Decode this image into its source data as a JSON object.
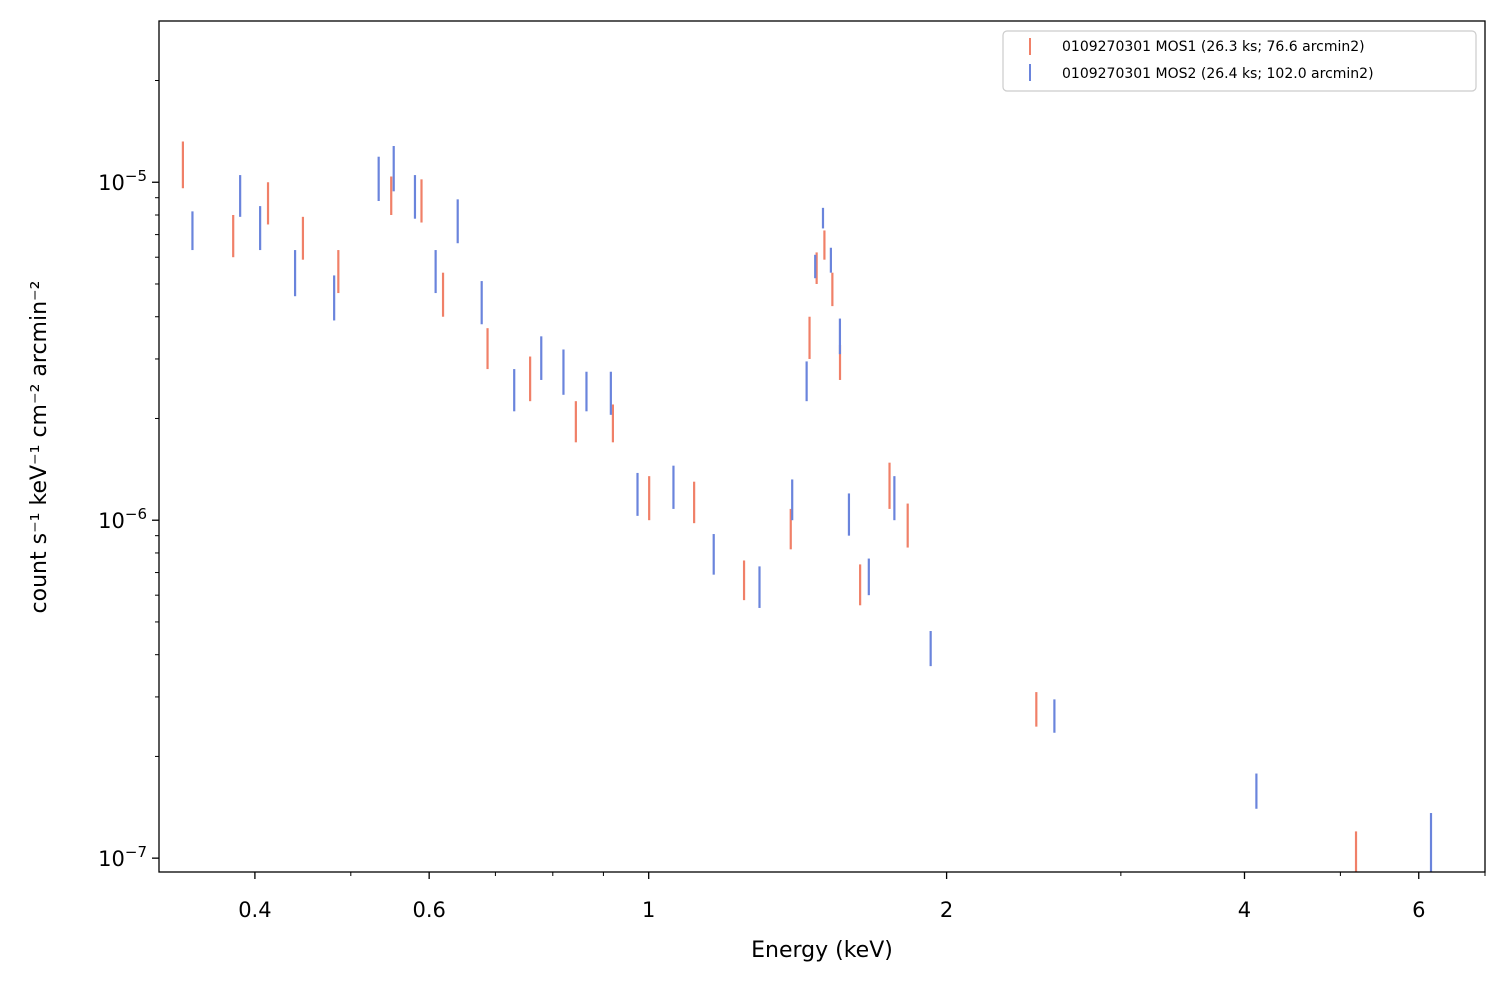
{
  "chart_data": {
    "type": "scatter",
    "title": "",
    "xlabel": "Energy (keV)",
    "ylabel": "count s⁻¹ keV⁻¹ cm⁻² arcmin⁻²",
    "xscale": "log",
    "yscale": "log",
    "xlim": [
      0.32,
      7.0
    ],
    "ylim": [
      9.1e-08,
      3e-05
    ],
    "xticks": [
      {
        "value": 0.4,
        "label": "0.4"
      },
      {
        "value": 0.6,
        "label": "0.6"
      },
      {
        "value": 1,
        "label": "1"
      },
      {
        "value": 2,
        "label": "2"
      },
      {
        "value": 4,
        "label": "4"
      },
      {
        "value": 6,
        "label": "6"
      }
    ],
    "yticks": [
      {
        "value": 1e-07,
        "base": "10",
        "exp": "−7"
      },
      {
        "value": 1e-06,
        "base": "10",
        "exp": "−6"
      },
      {
        "value": 1e-05,
        "base": "10",
        "exp": "−5"
      }
    ],
    "grid": false,
    "legend_position": "top-right",
    "series": [
      {
        "name": "0109270301 MOS1 (26.3 ks; 76.6 arcmin2)",
        "color": "#f08068",
        "points": [
          {
            "x": 0.3383,
            "y_low": 9.6e-06,
            "y_high": 1.32e-05
          },
          {
            "x": 0.3803,
            "y_low": 6e-06,
            "y_high": 8e-06
          },
          {
            "x": 0.4124,
            "y_low": 7.5e-06,
            "y_high": 1e-05
          },
          {
            "x": 0.4473,
            "y_low": 5.9e-06,
            "y_high": 7.9e-06
          },
          {
            "x": 0.4857,
            "y_low": 4.7e-06,
            "y_high": 6.3e-06
          },
          {
            "x": 0.5493,
            "y_low": 8e-06,
            "y_high": 1.04e-05
          },
          {
            "x": 0.5894,
            "y_low": 7.6e-06,
            "y_high": 1.02e-05
          },
          {
            "x": 0.6197,
            "y_low": 4e-06,
            "y_high": 5.4e-06
          },
          {
            "x": 0.6873,
            "y_low": 2.8e-06,
            "y_high": 3.7e-06
          },
          {
            "x": 0.7589,
            "y_low": 2.25e-06,
            "y_high": 3.05e-06
          },
          {
            "x": 0.8441,
            "y_low": 1.7e-06,
            "y_high": 2.25e-06
          },
          {
            "x": 0.9201,
            "y_low": 1.7e-06,
            "y_high": 2.2e-06
          },
          {
            "x": 1.0011,
            "y_low": 1e-06,
            "y_high": 1.35e-06
          },
          {
            "x": 1.1115,
            "y_low": 9.8e-07,
            "y_high": 1.3e-06
          },
          {
            "x": 1.2484,
            "y_low": 5.8e-07,
            "y_high": 7.6e-07
          },
          {
            "x": 1.3917,
            "y_low": 8.2e-07,
            "y_high": 1.08e-06
          },
          {
            "x": 1.4539,
            "y_low": 3e-06,
            "y_high": 4e-06
          },
          {
            "x": 1.4781,
            "y_low": 5e-06,
            "y_high": 6.2e-06
          },
          {
            "x": 1.5051,
            "y_low": 5.9e-06,
            "y_high": 7.2e-06
          },
          {
            "x": 1.5332,
            "y_low": 4.3e-06,
            "y_high": 5.4e-06
          },
          {
            "x": 1.5607,
            "y_low": 2.6e-06,
            "y_high": 3.3e-06
          },
          {
            "x": 1.6355,
            "y_low": 5.6e-07,
            "y_high": 7.4e-07
          },
          {
            "x": 1.7513,
            "y_low": 1.08e-06,
            "y_high": 1.48e-06
          },
          {
            "x": 1.8269,
            "y_low": 8.3e-07,
            "y_high": 1.12e-06
          },
          {
            "x": 2.4643,
            "y_low": 2.45e-07,
            "y_high": 3.1e-07
          },
          {
            "x": 5.1852,
            "y_low": 8.5e-08,
            "y_high": 1.2e-07
          }
        ]
      },
      {
        "name": "0109270301 MOS2 (26.4 ks; 102.0 arcmin2)",
        "color": "#6a84dc",
        "points": [
          {
            "x": 0.3459,
            "y_low": 6.3e-06,
            "y_high": 8.2e-06
          },
          {
            "x": 0.3865,
            "y_low": 7.9e-06,
            "y_high": 1.05e-05
          },
          {
            "x": 0.4049,
            "y_low": 6.3e-06,
            "y_high": 8.5e-06
          },
          {
            "x": 0.4392,
            "y_low": 4.6e-06,
            "y_high": 6.3e-06
          },
          {
            "x": 0.481,
            "y_low": 3.9e-06,
            "y_high": 5.3e-06
          },
          {
            "x": 0.5335,
            "y_low": 8.8e-06,
            "y_high": 1.19e-05
          },
          {
            "x": 0.5525,
            "y_low": 9.4e-06,
            "y_high": 1.28e-05
          },
          {
            "x": 0.5805,
            "y_low": 7.8e-06,
            "y_high": 1.05e-05
          },
          {
            "x": 0.6091,
            "y_low": 4.7e-06,
            "y_high": 6.3e-06
          },
          {
            "x": 0.6412,
            "y_low": 6.6e-06,
            "y_high": 8.9e-06
          },
          {
            "x": 0.678,
            "y_low": 3.8e-06,
            "y_high": 5.1e-06
          },
          {
            "x": 0.7313,
            "y_low": 2.1e-06,
            "y_high": 2.8e-06
          },
          {
            "x": 0.7788,
            "y_low": 2.6e-06,
            "y_high": 3.5e-06
          },
          {
            "x": 0.8201,
            "y_low": 2.35e-06,
            "y_high": 3.2e-06
          },
          {
            "x": 0.8652,
            "y_low": 2.1e-06,
            "y_high": 2.75e-06
          },
          {
            "x": 0.9157,
            "y_low": 2.05e-06,
            "y_high": 2.75e-06
          },
          {
            "x": 0.9743,
            "y_low": 1.03e-06,
            "y_high": 1.38e-06
          },
          {
            "x": 1.0593,
            "y_low": 1.08e-06,
            "y_high": 1.45e-06
          },
          {
            "x": 1.1633,
            "y_low": 6.9e-07,
            "y_high": 9.1e-07
          },
          {
            "x": 1.2941,
            "y_low": 5.5e-07,
            "y_high": 7.3e-07
          },
          {
            "x": 1.3964,
            "y_low": 1e-06,
            "y_high": 1.32e-06
          },
          {
            "x": 1.4441,
            "y_low": 2.25e-06,
            "y_high": 2.95e-06
          },
          {
            "x": 1.4732,
            "y_low": 5.2e-06,
            "y_high": 6.1e-06
          },
          {
            "x": 1.5001,
            "y_low": 7.3e-06,
            "y_high": 8.4e-06
          },
          {
            "x": 1.5279,
            "y_low": 5.4e-06,
            "y_high": 6.4e-06
          },
          {
            "x": 1.5604,
            "y_low": 3.1e-06,
            "y_high": 3.95e-06
          },
          {
            "x": 1.5935,
            "y_low": 9e-07,
            "y_high": 1.2e-06
          },
          {
            "x": 1.6689,
            "y_low": 6e-07,
            "y_high": 7.7e-07
          },
          {
            "x": 1.7712,
            "y_low": 1e-06,
            "y_high": 1.35e-06
          },
          {
            "x": 1.9272,
            "y_low": 3.7e-07,
            "y_high": 4.7e-07
          },
          {
            "x": 2.5702,
            "y_low": 2.35e-07,
            "y_high": 2.95e-07
          },
          {
            "x": 4.1124,
            "y_low": 1.4e-07,
            "y_high": 1.78e-07
          },
          {
            "x": 6.1735,
            "y_low": 9.1e-08,
            "y_high": 1.36e-07
          }
        ]
      }
    ]
  }
}
